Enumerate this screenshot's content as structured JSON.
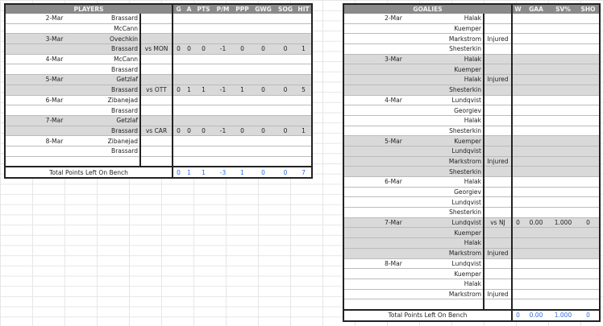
{
  "players": {
    "header": "PLAYERS",
    "columns": [
      "G",
      "A",
      "PTS",
      "P/M",
      "PPP",
      "GWG",
      "SOG",
      "HIT"
    ],
    "rows": [
      {
        "date": "2-Mar",
        "name": "Brassard",
        "opp": "",
        "stats": []
      },
      {
        "date": "",
        "name": "McCann",
        "opp": "",
        "stats": []
      },
      {
        "date": "3-Mar",
        "name": "Ovechkin",
        "opp": "",
        "stats": [],
        "shade": true
      },
      {
        "date": "",
        "name": "Brassard",
        "opp": "vs MON",
        "stats": [
          "0",
          "0",
          "0",
          "-1",
          "0",
          "0",
          "0",
          "1"
        ],
        "shade": true
      },
      {
        "date": "4-Mar",
        "name": "McCann",
        "opp": "",
        "stats": []
      },
      {
        "date": "",
        "name": "Brassard",
        "opp": "",
        "stats": []
      },
      {
        "date": "5-Mar",
        "name": "Getzlaf",
        "opp": "",
        "stats": [],
        "shade": true
      },
      {
        "date": "",
        "name": "Brassard",
        "opp": "vs OTT",
        "stats": [
          "0",
          "1",
          "1",
          "-1",
          "1",
          "0",
          "0",
          "5"
        ],
        "shade": true
      },
      {
        "date": "6-Mar",
        "name": "Zibanejad",
        "opp": "",
        "stats": []
      },
      {
        "date": "",
        "name": "Brassard",
        "opp": "",
        "stats": []
      },
      {
        "date": "7-Mar",
        "name": "Getzlaf",
        "opp": "",
        "stats": [],
        "shade": true
      },
      {
        "date": "",
        "name": "Brassard",
        "opp": "vs CAR",
        "stats": [
          "0",
          "0",
          "0",
          "-1",
          "0",
          "0",
          "0",
          "1"
        ],
        "shade": true
      },
      {
        "date": "8-Mar",
        "name": "Zibanejad",
        "opp": "",
        "stats": []
      },
      {
        "date": "",
        "name": "Brassard",
        "opp": "",
        "stats": []
      },
      {
        "date": "",
        "name": "",
        "opp": "",
        "stats": []
      }
    ],
    "total_label": "Total Points Left On Bench",
    "totals": [
      "0",
      "1",
      "1",
      "-3",
      "1",
      "0",
      "0",
      "7"
    ]
  },
  "goalies": {
    "header": "GOALIES",
    "columns": [
      "W",
      "GAA",
      "SV%",
      "SHO"
    ],
    "rows": [
      {
        "date": "2-Mar",
        "name": "Halak",
        "status": ""
      },
      {
        "date": "",
        "name": "Kuemper",
        "status": ""
      },
      {
        "date": "",
        "name": "Markstrom",
        "status": "Injured"
      },
      {
        "date": "",
        "name": "Shesterkin",
        "status": ""
      },
      {
        "date": "3-Mar",
        "name": "Halak",
        "status": "",
        "shade": true
      },
      {
        "date": "",
        "name": "Kuemper",
        "status": "",
        "shade": true
      },
      {
        "date": "",
        "name": "Halak",
        "status": "Injured",
        "shade": true
      },
      {
        "date": "",
        "name": "Shesterkin",
        "status": "",
        "shade": true
      },
      {
        "date": "4-Mar",
        "name": "Lundqvist",
        "status": ""
      },
      {
        "date": "",
        "name": "Georgiev",
        "status": ""
      },
      {
        "date": "",
        "name": "Halak",
        "status": ""
      },
      {
        "date": "",
        "name": "Shesterkin",
        "status": ""
      },
      {
        "date": "5-Mar",
        "name": "Kuemper",
        "status": "",
        "shade": true
      },
      {
        "date": "",
        "name": "Lundqvist",
        "status": "",
        "shade": true
      },
      {
        "date": "",
        "name": "Markstrom",
        "status": "Injured",
        "shade": true
      },
      {
        "date": "",
        "name": "Shesterkin",
        "status": "",
        "shade": true
      },
      {
        "date": "6-Mar",
        "name": "Halak",
        "status": ""
      },
      {
        "date": "",
        "name": "Georgiev",
        "status": ""
      },
      {
        "date": "",
        "name": "Lundqvist",
        "status": ""
      },
      {
        "date": "",
        "name": "Shesterkin",
        "status": ""
      },
      {
        "date": "7-Mar",
        "name": "Lundqvist",
        "status": "vs NJ",
        "stats": [
          "0",
          "0.00",
          "1.000",
          "0"
        ],
        "shade": true
      },
      {
        "date": "",
        "name": "Kuemper",
        "status": "",
        "shade": true
      },
      {
        "date": "",
        "name": "Halak",
        "status": "",
        "shade": true
      },
      {
        "date": "",
        "name": "Markstrom",
        "status": "Injured",
        "shade": true
      },
      {
        "date": "8-Mar",
        "name": "Lundqvist",
        "status": ""
      },
      {
        "date": "",
        "name": "Kuemper",
        "status": ""
      },
      {
        "date": "",
        "name": "Halak",
        "status": ""
      },
      {
        "date": "",
        "name": "Markstrom",
        "status": "Injured"
      },
      {
        "date": "",
        "name": "",
        "status": ""
      }
    ],
    "total_label": "Total Points Left On Bench",
    "totals": [
      "0",
      "0.00",
      "1.000",
      "0"
    ]
  }
}
